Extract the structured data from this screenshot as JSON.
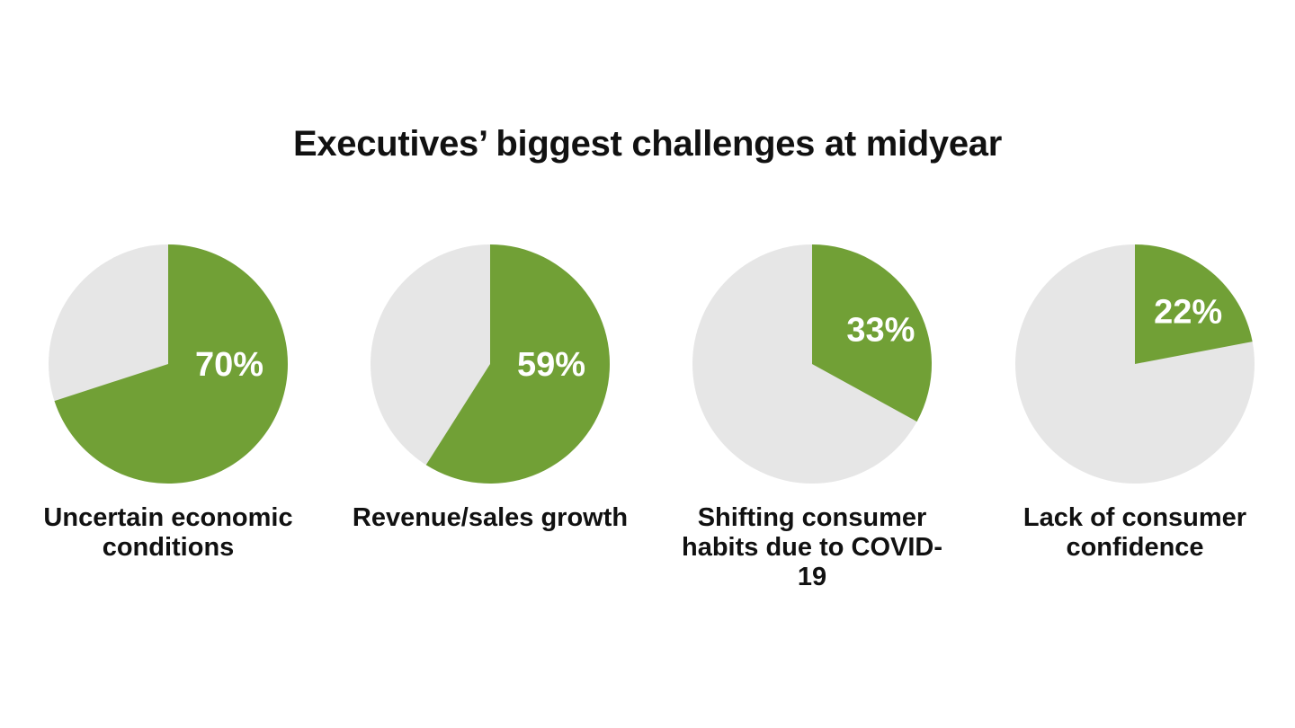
{
  "chart_data": {
    "type": "pie",
    "title": "Executives’ biggest challenges at midyear",
    "colors": {
      "value": "#71a036",
      "remainder": "#e6e6e6",
      "value_label": "#ffffff"
    },
    "pies": [
      {
        "category": "Uncertain economic conditions",
        "value": 70,
        "value_label": "70%"
      },
      {
        "category": "Revenue/sales growth",
        "value": 59,
        "value_label": "59%"
      },
      {
        "category": "Shifting consumer habits due to COVID-19",
        "value": 33,
        "value_label": "33%"
      },
      {
        "category": "Lack of consumer confidence",
        "value": 22,
        "value_label": "22%"
      }
    ]
  }
}
